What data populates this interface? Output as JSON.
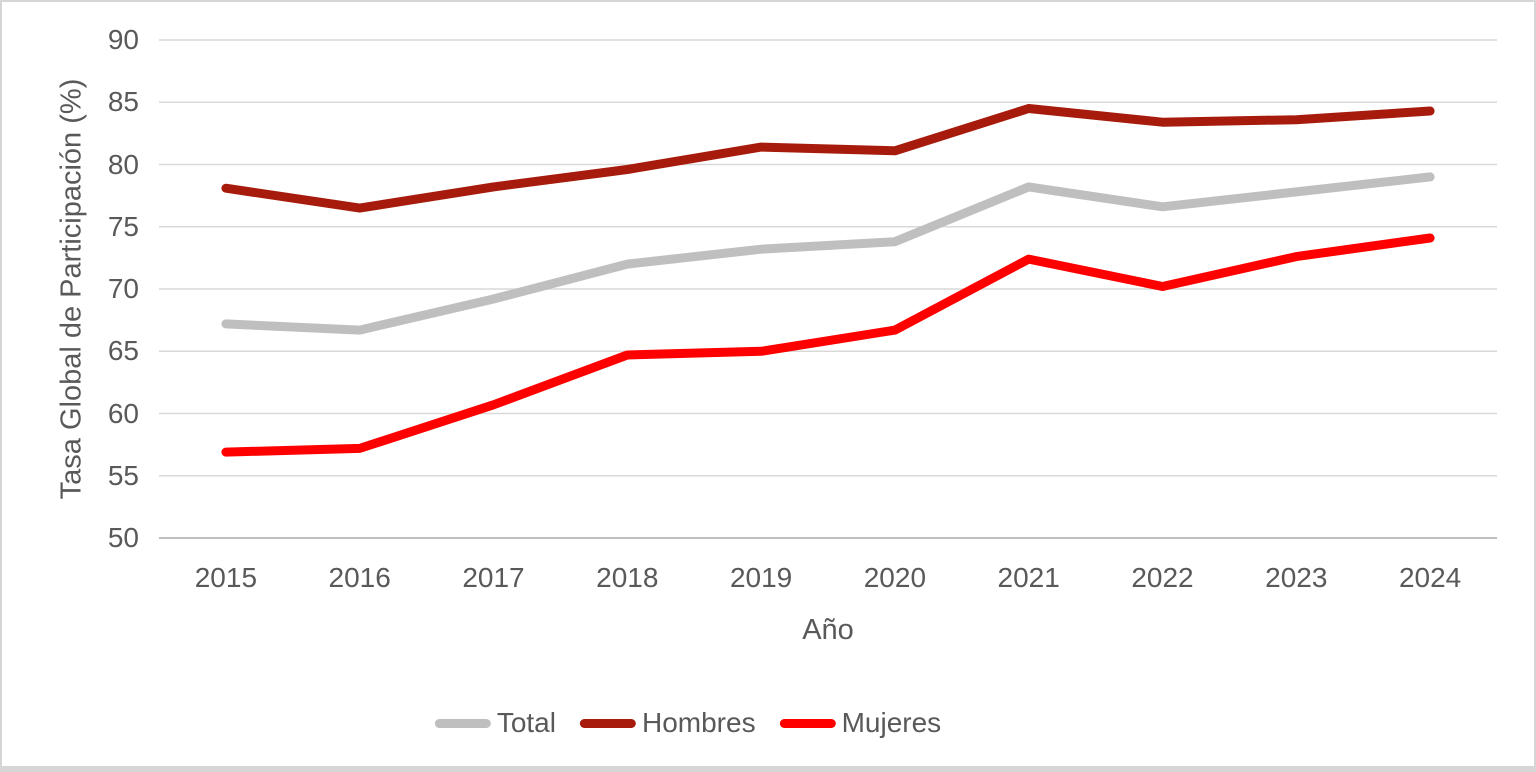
{
  "chart_data": {
    "type": "line",
    "title": "",
    "xlabel": "Año",
    "ylabel": "Tasa Global de Participación (%)",
    "x": [
      "2015",
      "2016",
      "2017",
      "2018",
      "2019",
      "2020",
      "2021",
      "2022",
      "2023",
      "2024"
    ],
    "ylim": [
      50,
      90
    ],
    "ytick_step": 5,
    "yticks": [
      50,
      55,
      60,
      65,
      70,
      75,
      80,
      85,
      90
    ],
    "grid": "horizontal-only",
    "legend_position": "bottom-center",
    "series": [
      {
        "name": "Total",
        "color": "#BFBFBF",
        "values": [
          67.2,
          66.7,
          69.2,
          72.0,
          73.2,
          73.8,
          78.2,
          76.6,
          77.8,
          79.0
        ]
      },
      {
        "name": "Hombres",
        "color": "#A61B0C",
        "values": [
          78.1,
          76.5,
          78.2,
          79.6,
          81.4,
          81.1,
          84.5,
          83.4,
          83.6,
          84.3
        ]
      },
      {
        "name": "Mujeres",
        "color": "#FF0000",
        "values": [
          56.9,
          57.2,
          60.7,
          64.7,
          65.0,
          66.7,
          72.4,
          70.2,
          72.6,
          74.1
        ]
      }
    ]
  },
  "colors": {
    "grid": "#D9D9D9",
    "axis_line": "#BFBFBF",
    "text": "#595959",
    "frame_border": "#D5D5D5",
    "background": "#FFFFFF"
  }
}
